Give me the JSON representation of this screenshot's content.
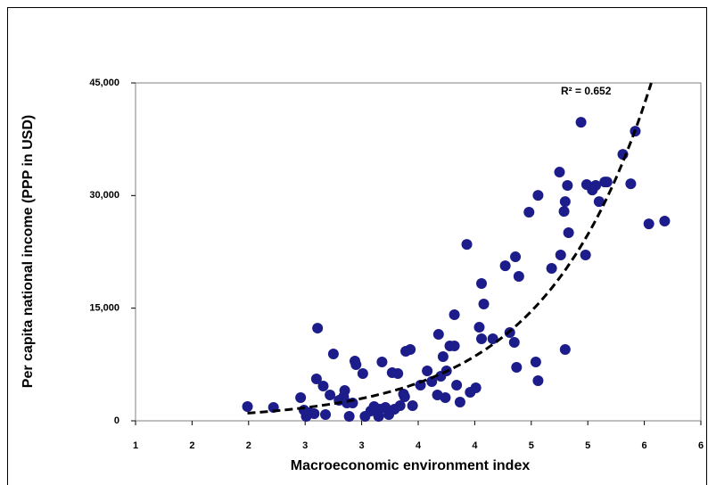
{
  "chart_data": {
    "type": "scatter",
    "x_label": "Macroeconomic environment index",
    "y_label": "Per capita national income (PPP in USD)",
    "annotation": "R² = 0.652",
    "color": "#1c1c8a",
    "trendline": "exponential",
    "xlim": [
      1,
      6
    ],
    "xticks": [
      1,
      {
        "value": 1.5,
        "label": "2"
      },
      2,
      {
        "value": 2.5,
        "label": "3"
      },
      3,
      {
        "value": 3.5,
        "label": "4"
      },
      4,
      {
        "value": 4.5,
        "label": "5"
      },
      5,
      {
        "value": 5.5,
        "label": "6"
      },
      6
    ],
    "ylim": [
      0,
      45000
    ],
    "yticks": [
      0,
      {
        "value": 15000,
        "label": "15,000"
      },
      {
        "value": 30000,
        "label": "30,000"
      },
      {
        "value": 45000,
        "label": "45,000"
      }
    ],
    "x": [
      1.99,
      2.22,
      2.46,
      2.49,
      2.51,
      2.54,
      2.58,
      2.61,
      2.6,
      2.66,
      2.68,
      2.72,
      2.75,
      2.8,
      2.84,
      2.85,
      2.87,
      2.89,
      2.92,
      2.94,
      2.95,
      3.01,
      3.03,
      3.08,
      3.11,
      3.15,
      3.16,
      3.18,
      3.21,
      3.24,
      3.27,
      3.29,
      3.32,
      3.34,
      3.37,
      3.39,
      3.38,
      3.43,
      3.45,
      3.52,
      3.58,
      3.62,
      3.67,
      3.68,
      3.7,
      3.72,
      3.74,
      3.75,
      3.78,
      3.82,
      3.82,
      3.84,
      3.87,
      3.93,
      3.96,
      4.01,
      4.04,
      4.06,
      4.06,
      4.08,
      4.16,
      4.27,
      4.31,
      4.35,
      4.36,
      4.37,
      4.39,
      4.48,
      4.54,
      4.56,
      4.56,
      4.68,
      4.75,
      4.76,
      4.79,
      4.8,
      4.8,
      4.82,
      4.83,
      4.94,
      4.98,
      4.99,
      5.04,
      5.07,
      5.1,
      5.15,
      5.17,
      5.31,
      5.38,
      5.42,
      5.54,
      5.68
    ],
    "values": [
      1900,
      1780,
      3090,
      1420,
      590,
      1070,
      950,
      12340,
      5580,
      4630,
      830,
      3440,
      8900,
      2730,
      3200,
      4040,
      2370,
      590,
      2370,
      7950,
      7480,
      6290,
      590,
      1310,
      1900,
      590,
      1540,
      7830,
      1780,
      830,
      6410,
      1540,
      6290,
      2020,
      3560,
      9260,
      3200,
      9500,
      2020,
      4750,
      6650,
      5220,
      3440,
      11510,
      5940,
      8550,
      3090,
      6650,
      9970,
      14130,
      9970,
      4750,
      2490,
      23500,
      3800,
      4390,
      12460,
      18280,
      10920,
      15550,
      10920,
      20650,
      11750,
      10450,
      21840,
      7120,
      19230,
      27780,
      7830,
      30030,
      5340,
      20300,
      33120,
      22080,
      27890,
      29200,
      9500,
      31340,
      25050,
      39760,
      22080,
      31460,
      30740,
      31340,
      29200,
      31810,
      31810,
      35490,
      31570,
      38580,
      26230,
      26590
    ]
  }
}
